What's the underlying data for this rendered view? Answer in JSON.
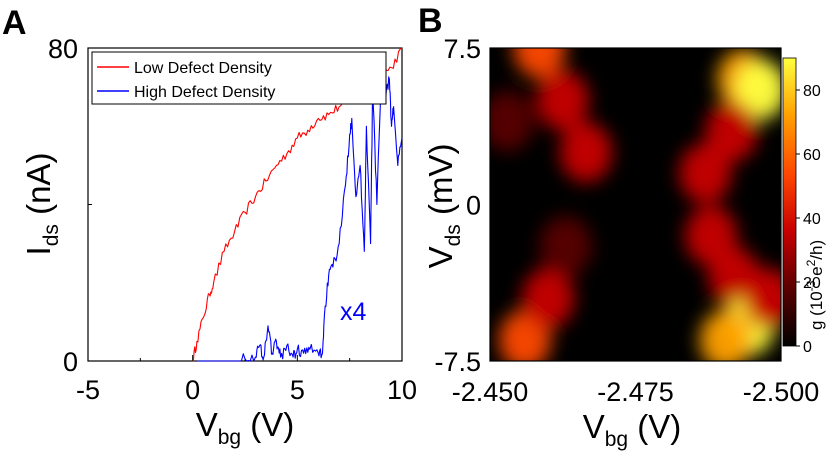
{
  "panels": {
    "a": "A",
    "b": "B"
  },
  "chart_data": [
    {
      "type": "line",
      "panel": "A",
      "xlabel": "V",
      "xlabel_sub": "bg",
      "xlabel_unit": " (V)",
      "ylabel": "I",
      "ylabel_sub": "ds",
      "ylabel_unit": " (nA)",
      "xlim": [
        -5,
        10
      ],
      "ylim": [
        0,
        80
      ],
      "xticks": [
        -5,
        0,
        5,
        10
      ],
      "xtick_labels": [
        "-5",
        "0",
        "5",
        "10"
      ],
      "yticks": [
        0,
        80
      ],
      "ytick_labels": [
        "0",
        "80"
      ],
      "annotation": "x4",
      "legend_position": "top-left",
      "series": [
        {
          "name": "Low Defect Density",
          "color": "#ff0000",
          "x": [
            0,
            0.2,
            0.5,
            0.8,
            1.0,
            1.5,
            2.0,
            2.5,
            3.0,
            3.5,
            4.0,
            4.5,
            5.0,
            5.5,
            6.0,
            6.5,
            7.0,
            7.5,
            8.0,
            8.5,
            9.0,
            9.5,
            10.0
          ],
          "y": [
            0,
            5,
            11,
            17,
            20,
            28,
            33,
            38,
            42,
            46,
            50,
            53,
            57,
            59,
            62,
            63,
            65,
            68,
            71,
            72,
            73,
            75,
            80
          ]
        },
        {
          "name": "High Defect Density",
          "color": "#0000ff",
          "x": [
            0.2,
            1.0,
            2.0,
            2.5,
            3.0,
            3.2,
            3.4,
            3.6,
            3.8,
            4.0,
            4.2,
            4.5,
            4.8,
            5.0,
            5.3,
            5.6,
            6.0,
            6.2,
            6.3,
            6.5,
            6.7,
            7.0,
            7.3,
            7.5,
            7.6,
            7.8,
            8.0,
            8.2,
            8.3,
            8.5,
            8.6,
            8.8,
            9.0,
            9.2,
            9.4,
            9.5,
            9.6,
            9.8,
            10.0
          ],
          "y": [
            0,
            0,
            0,
            0.5,
            1,
            4,
            1,
            9,
            2,
            5,
            1,
            4,
            1,
            3,
            2,
            3,
            2,
            2,
            12,
            22,
            24,
            30,
            45,
            58,
            62,
            42,
            50,
            28,
            60,
            30,
            70,
            40,
            72,
            68,
            72,
            60,
            65,
            50,
            57
          ]
        }
      ]
    },
    {
      "type": "heatmap",
      "panel": "B",
      "xlabel": "V",
      "xlabel_sub": "bg",
      "xlabel_unit": " (V)",
      "ylabel": "V",
      "ylabel_sub": "ds",
      "ylabel_unit": " (mV)",
      "xlim": [
        -2.45,
        -2.5
      ],
      "ylim": [
        -7.5,
        7.5
      ],
      "xtick_labels": [
        "-2.450",
        "-2.475",
        "-2.500"
      ],
      "xticks": [
        -2.45,
        -2.475,
        -2.5
      ],
      "ytick_labels": [
        "-7.5",
        "0",
        "7.5"
      ],
      "yticks": [
        -7.5,
        0,
        7.5
      ],
      "colorbar": {
        "label_pre": "g (10",
        "label_exp": "-3",
        "label_mid": " e",
        "label_exp2": "2",
        "label_post": "/h)",
        "range": [
          0,
          90
        ],
        "ticks": [
          0,
          20,
          40,
          60,
          80
        ],
        "tick_labels": [
          "0",
          "20",
          "40",
          "60",
          "80"
        ],
        "colors": [
          "#000000",
          "#5a0000",
          "#c80000",
          "#ff4800",
          "#ffa000",
          "#ffff40"
        ]
      },
      "features": [
        {
          "x": -2.4585,
          "y": 7.5,
          "value": 60
        },
        {
          "x": -2.4625,
          "y": 5.0,
          "value": 40
        },
        {
          "x": -2.4665,
          "y": 2.5,
          "value": 30
        },
        {
          "x": -2.4935,
          "y": 6.0,
          "value": 80
        },
        {
          "x": -2.4965,
          "y": 5.5,
          "value": 90
        },
        {
          "x": -2.487,
          "y": 1.5,
          "value": 35
        },
        {
          "x": -2.4915,
          "y": 3.5,
          "value": 40
        },
        {
          "x": -2.488,
          "y": -1.5,
          "value": 30
        },
        {
          "x": -2.492,
          "y": -3.5,
          "value": 35
        },
        {
          "x": -2.4945,
          "y": -5.8,
          "value": 85
        },
        {
          "x": -2.4905,
          "y": -6.5,
          "value": 70
        },
        {
          "x": -2.498,
          "y": -4.5,
          "value": 40
        },
        {
          "x": -2.456,
          "y": -6.5,
          "value": 55
        },
        {
          "x": -2.46,
          "y": -4.5,
          "value": 40
        },
        {
          "x": -2.463,
          "y": -2.0,
          "value": 25
        },
        {
          "x": -2.453,
          "y": 4.0,
          "value": 15
        }
      ]
    }
  ]
}
